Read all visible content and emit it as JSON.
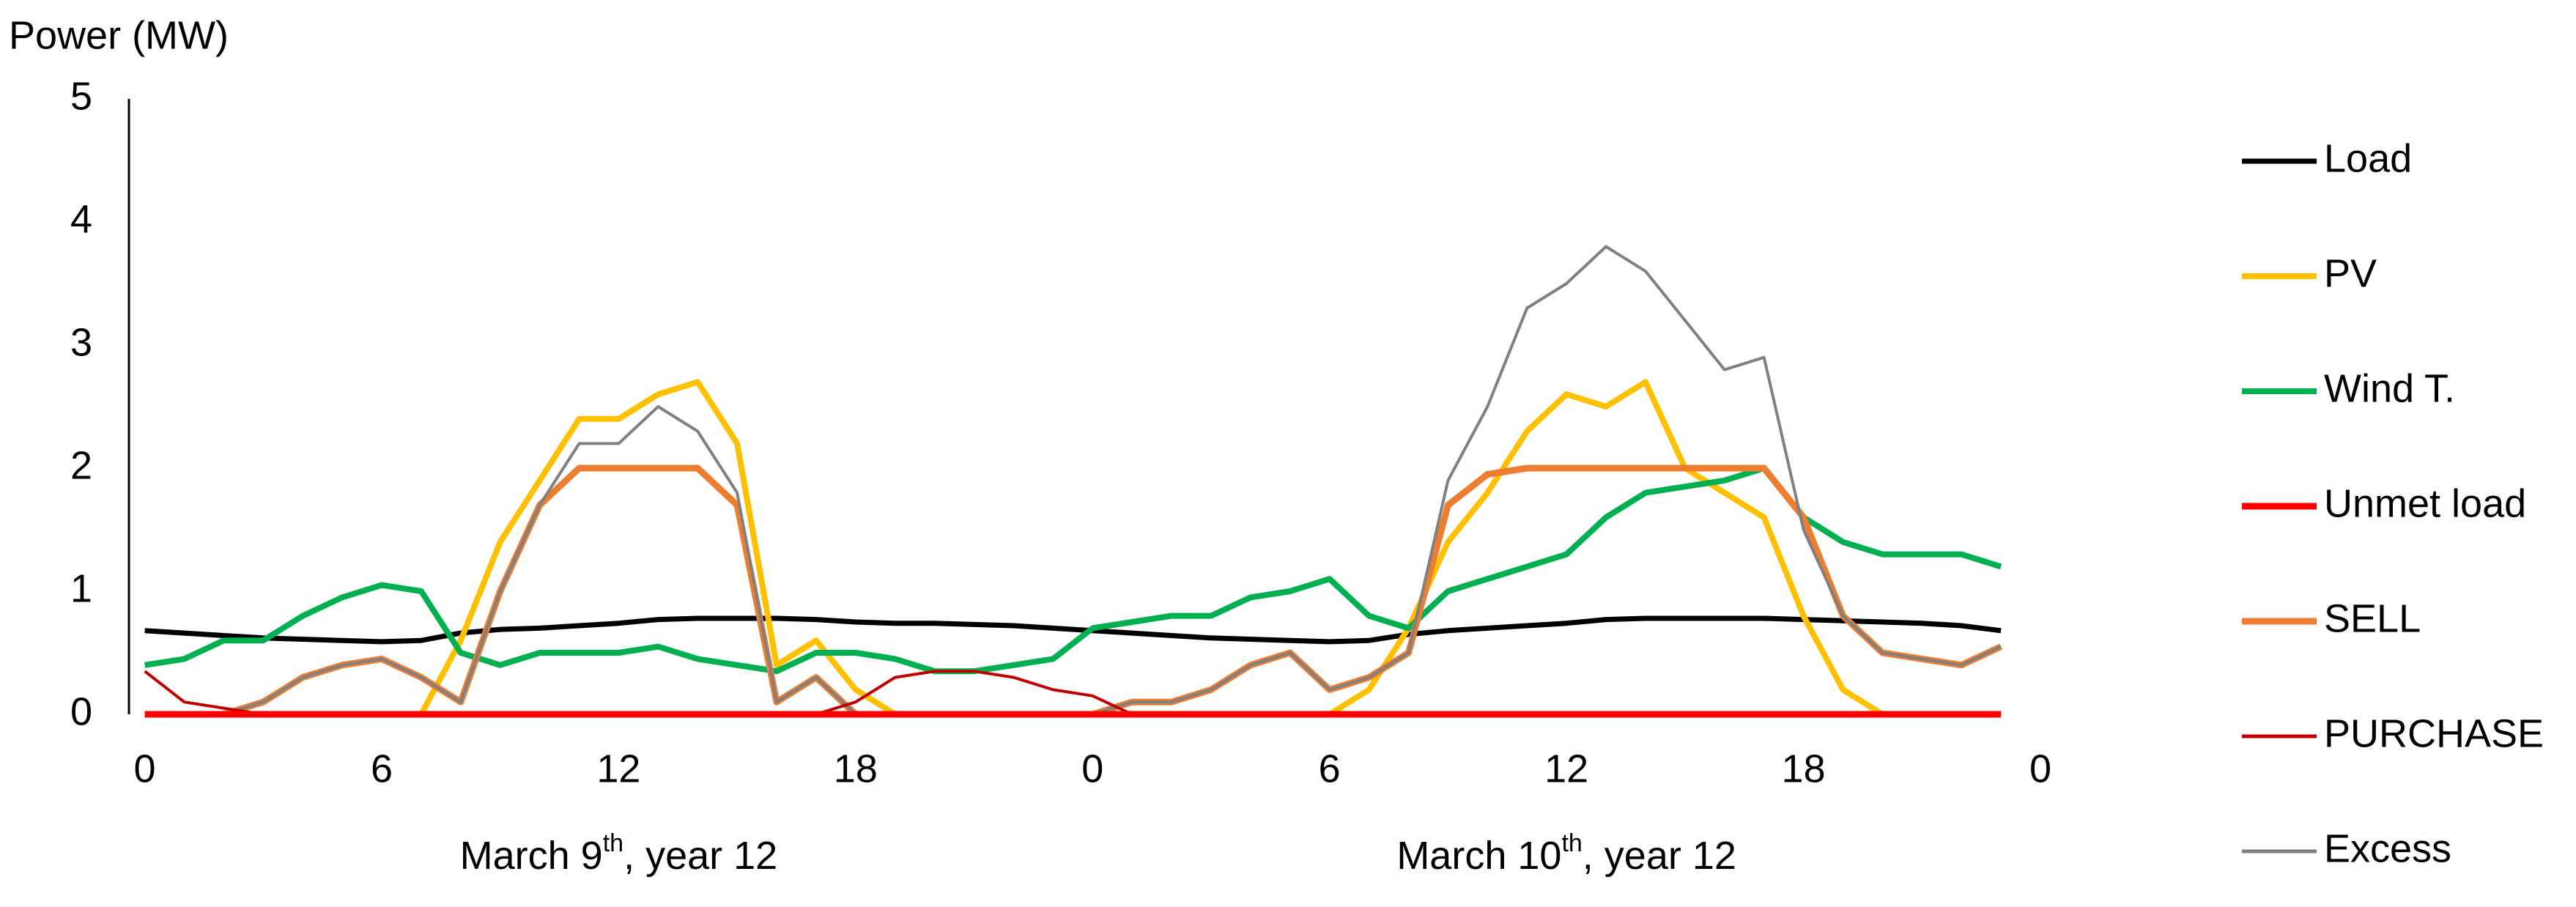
{
  "chart_data": {
    "type": "line",
    "y_label": "Power (MW)",
    "x": [
      0,
      1,
      2,
      3,
      4,
      5,
      6,
      7,
      8,
      9,
      10,
      11,
      12,
      13,
      14,
      15,
      16,
      17,
      18,
      19,
      20,
      21,
      22,
      23,
      24,
      25,
      26,
      27,
      28,
      29,
      30,
      31,
      32,
      33,
      34,
      35,
      36,
      37,
      38,
      39,
      40,
      41,
      42,
      43,
      44,
      45,
      46,
      47
    ],
    "xlim": [
      -0.4,
      48
    ],
    "xticks": [
      0,
      6,
      12,
      18,
      {
        "value": 24,
        "label": "0"
      },
      {
        "value": 30,
        "label": "6"
      },
      {
        "value": 36,
        "label": "12"
      },
      {
        "value": 42,
        "label": "18"
      },
      {
        "value": 48,
        "label": "0"
      }
    ],
    "ylim": [
      0,
      5
    ],
    "yticks": [
      0,
      1,
      2,
      3,
      4,
      5
    ],
    "grid": false,
    "legend": "right",
    "day_labels": [
      {
        "main": "March 9",
        "sup": "th",
        "tail": ", year 12",
        "x": 12
      },
      {
        "main": "March 10",
        "sup": "th",
        "tail": ", year 12",
        "x": 36
      }
    ],
    "series": [
      {
        "name": "Load",
        "color": "#000000",
        "values": [
          0.68,
          0.66,
          0.64,
          0.62,
          0.61,
          0.6,
          0.59,
          0.6,
          0.66,
          0.69,
          0.7,
          0.72,
          0.74,
          0.77,
          0.78,
          0.78,
          0.78,
          0.77,
          0.75,
          0.74,
          0.74,
          0.73,
          0.72,
          0.7,
          0.68,
          0.66,
          0.64,
          0.62,
          0.61,
          0.6,
          0.59,
          0.6,
          0.65,
          0.68,
          0.7,
          0.72,
          0.74,
          0.77,
          0.78,
          0.78,
          0.78,
          0.78,
          0.77,
          0.76,
          0.75,
          0.74,
          0.72,
          0.68
        ]
      },
      {
        "name": "PV",
        "color": "#ffc000",
        "values": [
          0,
          0,
          0,
          0,
          0,
          0,
          0,
          0,
          0.6,
          1.4,
          1.9,
          2.4,
          2.4,
          2.6,
          2.7,
          2.2,
          0.4,
          0.6,
          0.2,
          0,
          0,
          0,
          0,
          0,
          0,
          0,
          0,
          0,
          0,
          0,
          0,
          0.2,
          0.7,
          1.4,
          1.8,
          2.3,
          2.6,
          2.5,
          2.7,
          2.0,
          1.8,
          1.6,
          0.8,
          0.2,
          0,
          0,
          0,
          0
        ]
      },
      {
        "name": "Wind T.",
        "color": "#00b050",
        "values": [
          0.4,
          0.45,
          0.6,
          0.6,
          0.8,
          0.95,
          1.05,
          1.0,
          0.5,
          0.4,
          0.5,
          0.5,
          0.5,
          0.55,
          0.45,
          0.4,
          0.35,
          0.5,
          0.5,
          0.45,
          0.35,
          0.35,
          0.4,
          0.45,
          0.7,
          0.75,
          0.8,
          0.8,
          0.95,
          1.0,
          1.1,
          0.8,
          0.7,
          1.0,
          1.1,
          1.2,
          1.3,
          1.6,
          1.8,
          1.85,
          1.9,
          2.0,
          1.6,
          1.4,
          1.3,
          1.3,
          1.3,
          1.2
        ]
      },
      {
        "name": "Unmet load",
        "color": "#ff0000",
        "values": [
          0,
          0,
          0,
          0,
          0,
          0,
          0,
          0,
          0,
          0,
          0,
          0,
          0,
          0,
          0,
          0,
          0,
          0,
          0,
          0,
          0,
          0,
          0,
          0,
          0,
          0,
          0,
          0,
          0,
          0,
          0,
          0,
          0,
          0,
          0,
          0,
          0,
          0,
          0,
          0,
          0,
          0,
          0,
          0,
          0,
          0,
          0,
          0
        ]
      },
      {
        "name": "SELL",
        "color": "#ed7d31",
        "values": [
          0,
          0,
          0,
          0.1,
          0.3,
          0.4,
          0.45,
          0.3,
          0.1,
          1.0,
          1.7,
          2.0,
          2.0,
          2.0,
          2.0,
          1.7,
          0.1,
          0.3,
          0,
          0,
          0,
          0,
          0,
          0,
          0,
          0.1,
          0.1,
          0.2,
          0.4,
          0.5,
          0.2,
          0.3,
          0.5,
          1.7,
          1.95,
          2.0,
          2.0,
          2.0,
          2.0,
          2.0,
          2.0,
          2.0,
          1.6,
          0.8,
          0.5,
          0.45,
          0.4,
          0.55
        ]
      },
      {
        "name": "PURCHASE",
        "color": "#c00000",
        "values": [
          0.35,
          0.1,
          0.05,
          0,
          0,
          0,
          0,
          0,
          0,
          0,
          0,
          0,
          0,
          0,
          0,
          0,
          0,
          0,
          0.1,
          0.3,
          0.35,
          0.35,
          0.3,
          0.2,
          0.15,
          0,
          0,
          0,
          0,
          0,
          0,
          0,
          0,
          0,
          0,
          0,
          0,
          0,
          0,
          0,
          0,
          0,
          0,
          0,
          0,
          0,
          0,
          0
        ]
      },
      {
        "name": "Excess",
        "color": "#808080",
        "values": [
          0,
          0,
          0,
          0.1,
          0.3,
          0.4,
          0.45,
          0.3,
          0.1,
          1.0,
          1.7,
          2.2,
          2.2,
          2.5,
          2.3,
          1.8,
          0.1,
          0.3,
          0,
          0,
          0,
          0,
          0,
          0,
          0,
          0.1,
          0.1,
          0.2,
          0.4,
          0.5,
          0.2,
          0.3,
          0.5,
          1.9,
          2.5,
          3.3,
          3.5,
          3.8,
          3.6,
          3.2,
          2.8,
          2.9,
          1.5,
          0.8,
          0.5,
          0.45,
          0.4,
          0.55
        ]
      }
    ]
  }
}
